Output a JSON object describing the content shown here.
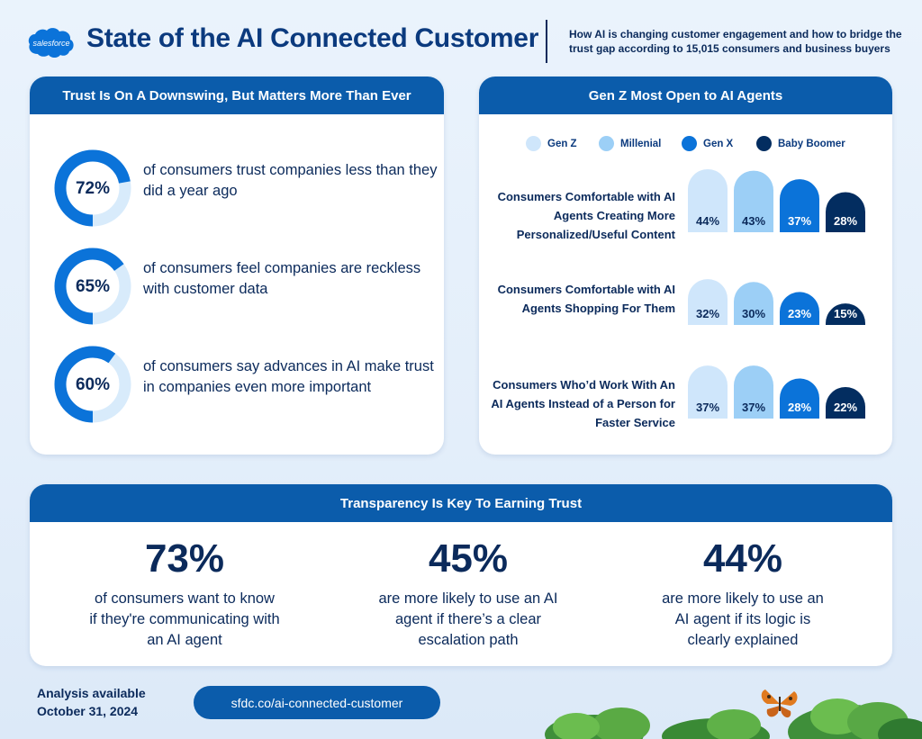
{
  "brand": {
    "logo_text": "salesforce"
  },
  "header": {
    "title": "State of the AI Connected Customer",
    "subtitle": "How AI is changing customer engagement and how to bridge the trust gap according to 15,015 consumers and business buyers"
  },
  "trust": {
    "title": "Trust Is On A Downswing, But Matters More Than Ever",
    "stats": [
      {
        "value": "72%",
        "pct": 72,
        "text": "of consumers trust companies less than they did a year ago"
      },
      {
        "value": "65%",
        "pct": 65,
        "text": "of consumers feel companies are reckless with customer data"
      },
      {
        "value": "60%",
        "pct": 60,
        "text": "of consumers say advances in AI make trust in companies even more important"
      }
    ]
  },
  "genz": {
    "title": "Gen Z Most Open to AI Agents"
  },
  "chart_data": {
    "type": "bar",
    "title": "Gen Z Most Open to AI Agents",
    "categories": [
      "Consumers Comfortable with AI Agents Creating More Personalized/Useful Content",
      "Consumers  Comfortable with AI Agents Shopping For Them",
      "Consumers Who’d Work With An AI Agents Instead of a Person for Faster Service"
    ],
    "series": [
      {
        "name": "Gen Z",
        "color": "#cfe6fb",
        "values": [
          44,
          32,
          37
        ],
        "labels": [
          "44%",
          "32%",
          "37%"
        ]
      },
      {
        "name": "Millenial",
        "color": "#9ccff6",
        "values": [
          43,
          30,
          37
        ],
        "labels": [
          "43%",
          "30%",
          "37%"
        ]
      },
      {
        "name": "Gen X",
        "color": "#0b73d9",
        "values": [
          37,
          23,
          28
        ],
        "labels": [
          "37%",
          "23%",
          "28%"
        ]
      },
      {
        "name": "Baby Boomer",
        "color": "#032d60",
        "values": [
          28,
          15,
          22
        ],
        "labels": [
          "28%",
          "15%",
          "22%"
        ]
      }
    ],
    "legend": "top"
  },
  "transparency": {
    "title": "Transparency Is Key To Earning Trust",
    "stats": [
      {
        "value": "73%",
        "text": "of consumers want to know if they're communicating with an AI agent"
      },
      {
        "value": "45%",
        "text": "are more likely to use an AI agent if there’s a clear escalation path"
      },
      {
        "value": "44%",
        "text": "are more likely to use an AI agent if its logic is clearly explained"
      }
    ]
  },
  "footer": {
    "analysis": "Analysis available October 31, 2024",
    "link": "sfdc.co/ai-connected-customer"
  },
  "colors": {
    "navy": "#0b2a5b",
    "brand_blue": "#0b5cab",
    "ring_track": "#d8ebfb",
    "ring_fill": "#0b73d9"
  }
}
